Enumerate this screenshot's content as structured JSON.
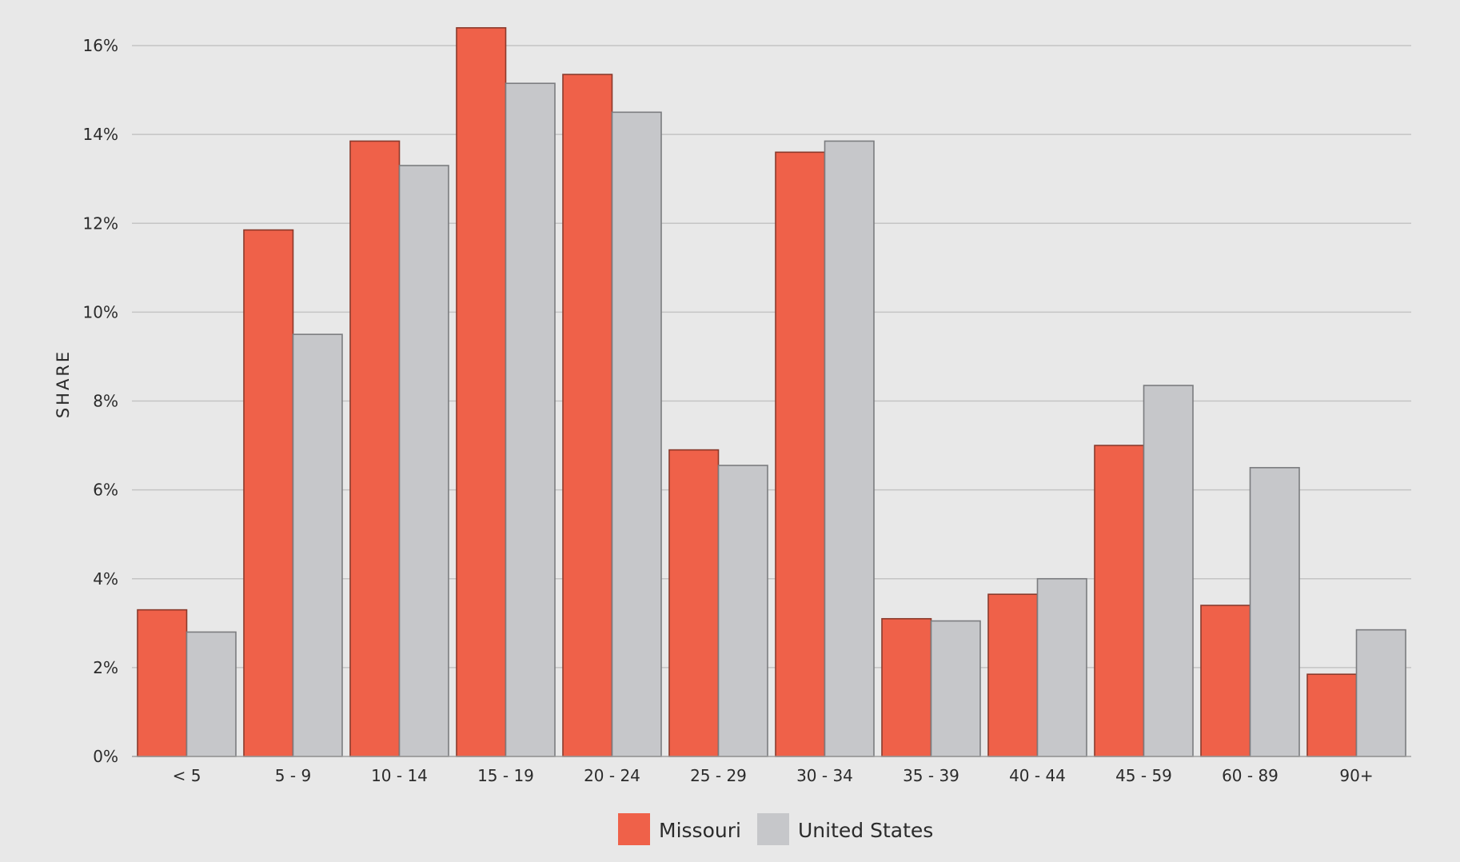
{
  "chart_data": {
    "type": "bar",
    "ylabel": "SHARE",
    "ylim": [
      0,
      16
    ],
    "y_ticks": [
      0,
      2,
      4,
      6,
      8,
      10,
      12,
      14,
      16
    ],
    "y_tick_suffix": "%",
    "grid": true,
    "legend_position": "bottom-center",
    "categories": [
      "< 5",
      "5 - 9",
      "10 - 14",
      "15 - 19",
      "20 - 24",
      "25 - 29",
      "30 - 34",
      "35 - 39",
      "40 - 44",
      "45 - 59",
      "60 - 89",
      "90+"
    ],
    "series": [
      {
        "name": "Missouri",
        "color": "#ef6149",
        "stroke": "#8a3a2c",
        "values": [
          3.3,
          11.85,
          13.85,
          16.4,
          15.35,
          6.9,
          13.6,
          3.1,
          3.65,
          7.0,
          3.4,
          1.85
        ]
      },
      {
        "name": "United States",
        "color": "#c6c7ca",
        "stroke": "#7b7c7f",
        "values": [
          2.8,
          9.5,
          13.3,
          15.15,
          14.5,
          6.55,
          13.85,
          3.05,
          4.0,
          8.35,
          6.5,
          2.85
        ]
      }
    ]
  }
}
